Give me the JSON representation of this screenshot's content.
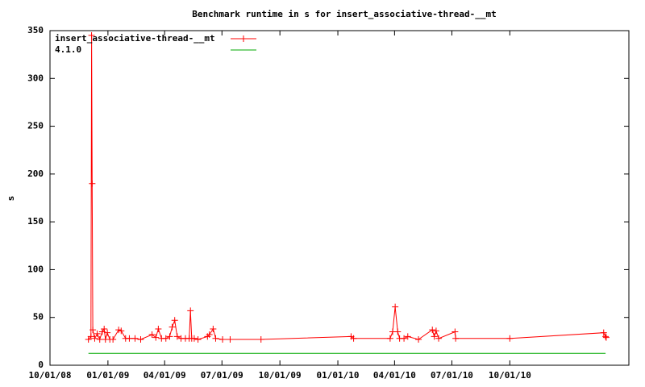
{
  "chart_data": {
    "type": "line",
    "title": "Benchmark runtime in s for insert_associative-thread-__mt",
    "y_label": "s",
    "xlim": [
      "2008-10-01",
      "2011-04-08"
    ],
    "xticks": [
      {
        "value": "2008-10-01",
        "label": "10/01/08"
      },
      {
        "value": "2009-01-01",
        "label": "01/01/09"
      },
      {
        "value": "2009-04-01",
        "label": "04/01/09"
      },
      {
        "value": "2009-07-01",
        "label": "07/01/09"
      },
      {
        "value": "2009-10-01",
        "label": "10/01/09"
      },
      {
        "value": "2010-01-01",
        "label": "01/01/10"
      },
      {
        "value": "2010-04-01",
        "label": "04/01/10"
      },
      {
        "value": "2010-07-01",
        "label": "07/01/10"
      },
      {
        "value": "2010-10-01",
        "label": "10/01/10"
      }
    ],
    "ylim": [
      0,
      350
    ],
    "yticks": [
      0,
      50,
      100,
      150,
      200,
      250,
      300,
      350
    ],
    "legend": "top-left",
    "series": [
      {
        "name": "insert_associative-thread-__mt",
        "color": "#ff0000",
        "marker": "+",
        "x": [
          "2008-12-01",
          "2008-12-05",
          "2008-12-06",
          "2008-12-07",
          "2008-12-08",
          "2008-12-11",
          "2008-12-15",
          "2008-12-19",
          "2008-12-23",
          "2008-12-26",
          "2008-12-28",
          "2008-12-31",
          "2009-01-04",
          "2009-01-09",
          "2009-01-18",
          "2009-01-22",
          "2009-01-29",
          "2009-02-04",
          "2009-02-13",
          "2009-02-22",
          "2009-03-12",
          "2009-03-18",
          "2009-03-22",
          "2009-03-27",
          "2009-04-03",
          "2009-04-09",
          "2009-04-13",
          "2009-04-17",
          "2009-04-21",
          "2009-04-27",
          "2009-05-04",
          "2009-05-10",
          "2009-05-12",
          "2009-05-14",
          "2009-05-18",
          "2009-05-24",
          "2009-06-08",
          "2009-06-11",
          "2009-06-17",
          "2009-06-21",
          "2009-07-02",
          "2009-07-14",
          "2009-09-01",
          "2010-01-22",
          "2010-01-26",
          "2010-03-25",
          "2010-03-29",
          "2010-04-02",
          "2010-04-06",
          "2010-04-09",
          "2010-04-16",
          "2010-04-22",
          "2010-05-09",
          "2010-05-31",
          "2010-06-03",
          "2010-06-06",
          "2010-06-10",
          "2010-07-06",
          "2010-07-07",
          "2010-10-01",
          "2011-02-27",
          "2011-03-02",
          "2011-03-03"
        ],
        "values": [
          27,
          30,
          345,
          190,
          37,
          28,
          33,
          27,
          35,
          38,
          27,
          34,
          27,
          27,
          37,
          36,
          28,
          28,
          28,
          27,
          32,
          29,
          38,
          28,
          28,
          30,
          40,
          47,
          30,
          28,
          28,
          28,
          57,
          28,
          28,
          27,
          30,
          32,
          38,
          28,
          27,
          27,
          27,
          30,
          28,
          28,
          35,
          61,
          35,
          28,
          28,
          30,
          27,
          37,
          30,
          36,
          28,
          35,
          28,
          28,
          34,
          30,
          29
        ]
      },
      {
        "name": "4.1.0",
        "color": "#00aa00",
        "x": [
          "2008-12-01",
          "2011-03-02"
        ],
        "values": [
          12.5,
          12.5
        ]
      }
    ]
  }
}
